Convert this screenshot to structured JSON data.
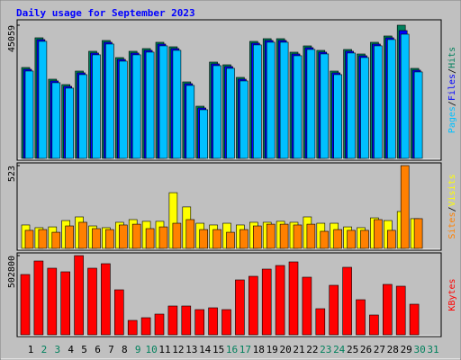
{
  "chart_data": [
    {
      "type": "bar",
      "title": "Daily usage for September 2023",
      "series": [
        {
          "name": "Hits",
          "color": "#00805c",
          "values": [
            30755,
            40803,
            26796,
            24969,
            29537,
            36236,
            39890,
            34104,
            36236,
            37149,
            39281,
            37758,
            25883,
            17661,
            32582,
            31668,
            27405,
            39585,
            40499,
            40499,
            35931,
            38063,
            36540,
            29537,
            36845,
            35322,
            39281,
            41412,
            45059,
            30450,
            0
          ]
        },
        {
          "name": "Files",
          "color": "#0000ff",
          "values": [
            30150,
            40200,
            26200,
            24370,
            28940,
            35640,
            39290,
            33500,
            35640,
            36550,
            38680,
            37160,
            25280,
            17060,
            31980,
            31070,
            26800,
            38990,
            39900,
            39900,
            35330,
            37460,
            35940,
            28940,
            36250,
            34720,
            38680,
            40810,
            43239,
            29850,
            0
          ]
        },
        {
          "name": "Pages",
          "color": "#00c0ff",
          "values": [
            29550,
            39600,
            25600,
            23770,
            28340,
            35040,
            38690,
            32900,
            35040,
            35950,
            38080,
            36560,
            24680,
            16460,
            31380,
            30470,
            26200,
            38390,
            39300,
            39300,
            34730,
            36860,
            35340,
            28340,
            35650,
            34120,
            38080,
            40210,
            42021,
            29250,
            0
          ]
        }
      ],
      "legend_separator": "/",
      "legend_position": "right",
      "ylim": [
        0,
        45059
      ],
      "yticks": [
        45059
      ]
    },
    {
      "type": "bar",
      "series": [
        {
          "name": "Visits",
          "color": "#ffff00",
          "values": [
            148,
            131,
            136,
            176,
            199,
            142,
            131,
            165,
            182,
            171,
            171,
            352,
            262,
            159,
            148,
            159,
            148,
            165,
            165,
            171,
            165,
            199,
            159,
            159,
            136,
            131,
            193,
            176,
            233,
            188,
            0
          ]
        },
        {
          "name": "Sites",
          "color": "#ff8000",
          "values": [
            114,
            119,
            102,
            142,
            165,
            125,
            119,
            148,
            153,
            125,
            136,
            159,
            182,
            119,
            119,
            102,
            119,
            142,
            153,
            153,
            148,
            153,
            108,
            119,
            114,
            114,
            182,
            114,
            523,
            188,
            0
          ]
        }
      ],
      "legend_separator": "/",
      "legend_position": "right",
      "ylim": [
        0,
        523
      ],
      "yticks": [
        523
      ]
    },
    {
      "type": "bar",
      "series": [
        {
          "name": "KBytes",
          "color": "#ff0000",
          "values": [
            382838,
            468548,
            422836,
            399980,
            502800,
            422836,
            451406,
            285700,
            91424,
            108566,
            131422,
            182848,
            182848,
            159992,
            171420,
            159992,
            348554,
            371410,
            417122,
            439978,
            462834,
            365696,
            165706,
            314270,
            428550,
            222846,
            125708,
            319984,
            308556,
            194276,
            0
          ]
        }
      ],
      "legend_position": "right",
      "ylim": [
        0,
        502800
      ],
      "yticks": [
        502800
      ],
      "categories": [
        "1",
        "2",
        "3",
        "4",
        "5",
        "6",
        "7",
        "8",
        "9",
        "10",
        "11",
        "12",
        "13",
        "14",
        "15",
        "16",
        "17",
        "18",
        "19",
        "20",
        "21",
        "22",
        "23",
        "24",
        "25",
        "26",
        "27",
        "28",
        "29",
        "30",
        "31"
      ],
      "category_colors": [
        "#000000",
        "#00805c",
        "#00805c",
        "#000000",
        "#000000",
        "#000000",
        "#000000",
        "#000000",
        "#00805c",
        "#00805c",
        "#000000",
        "#000000",
        "#000000",
        "#000000",
        "#000000",
        "#00805c",
        "#00805c",
        "#000000",
        "#000000",
        "#000000",
        "#000000",
        "#000000",
        "#00805c",
        "#00805c",
        "#000000",
        "#000000",
        "#000000",
        "#000000",
        "#000000",
        "#00805c",
        "#00805c"
      ]
    }
  ]
}
